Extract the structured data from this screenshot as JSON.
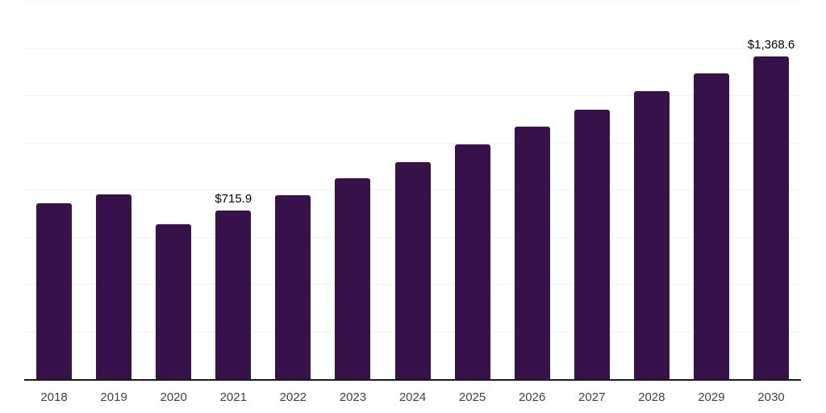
{
  "chart": {
    "bar_color": "#36114A",
    "gridline_color": "#f2f2f2",
    "axis_color": "#1a1a1a",
    "tick_label_color": "#404040",
    "data_label_color": "#000000"
  },
  "chart_data": {
    "type": "bar",
    "title": "",
    "xlabel": "",
    "ylabel": "",
    "categories": [
      "2018",
      "2019",
      "2020",
      "2021",
      "2022",
      "2023",
      "2024",
      "2025",
      "2026",
      "2027",
      "2028",
      "2029",
      "2030"
    ],
    "values": [
      745,
      783,
      655,
      715.9,
      780,
      852,
      921,
      994,
      1071,
      1142,
      1220,
      1296,
      1368.6
    ],
    "data_labels": [
      null,
      null,
      null,
      "$715.9",
      null,
      null,
      null,
      null,
      null,
      null,
      null,
      null,
      "$1,368.6"
    ],
    "ylim": [
      0,
      1600
    ],
    "gridline_interval": 200,
    "grid": true,
    "legend": false
  }
}
